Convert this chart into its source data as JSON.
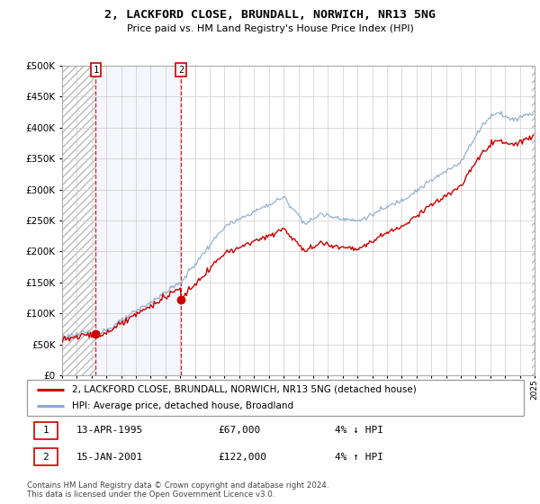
{
  "title": "2, LACKFORD CLOSE, BRUNDALL, NORWICH, NR13 5NG",
  "subtitle": "Price paid vs. HM Land Registry's House Price Index (HPI)",
  "ylim": [
    0,
    500000
  ],
  "yticks": [
    0,
    50000,
    100000,
    150000,
    200000,
    250000,
    300000,
    350000,
    400000,
    450000,
    500000
  ],
  "ytick_labels": [
    "£0",
    "£50K",
    "£100K",
    "£150K",
    "£200K",
    "£250K",
    "£300K",
    "£350K",
    "£400K",
    "£450K",
    "£500K"
  ],
  "sale1_date": 1995.28,
  "sale1_price": 67000,
  "sale2_date": 2001.04,
  "sale2_price": 122000,
  "legend_property": "2, LACKFORD CLOSE, BRUNDALL, NORWICH, NR13 5NG (detached house)",
  "legend_hpi": "HPI: Average price, detached house, Broadland",
  "note1_date": "13-APR-1995",
  "note1_price": "£67,000",
  "note1_hpi": "4% ↓ HPI",
  "note2_date": "15-JAN-2001",
  "note2_price": "£122,000",
  "note2_hpi": "4% ↑ HPI",
  "footer": "Contains HM Land Registry data © Crown copyright and database right 2024.\nThis data is licensed under the Open Government Licence v3.0.",
  "property_line_color": "#cc0000",
  "hpi_line_color": "#88aacc",
  "sale_marker_color": "#cc0000",
  "grid_color": "#cccccc"
}
